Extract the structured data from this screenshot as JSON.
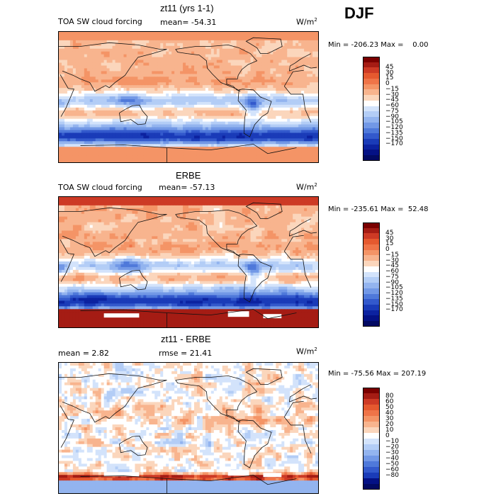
{
  "season": "DJF",
  "colors": {
    "scale1": [
      "#7a0000",
      "#a51c14",
      "#cd3a25",
      "#e5592f",
      "#ef7448",
      "#f49466",
      "#f8b48e",
      "#fbd6bc",
      "#ffffff",
      "#d3e3fb",
      "#b3cdf6",
      "#93b4ef",
      "#7298e6",
      "#4f79da",
      "#3359cc",
      "#1a3bb8",
      "#0c22a0",
      "#041185",
      "#020a63"
    ],
    "scale3": [
      "#7a0000",
      "#a51c14",
      "#cd3a25",
      "#e5592f",
      "#ef7448",
      "#f49466",
      "#f8b48e",
      "#fbd6bc",
      "#ffffff",
      "#d3e3fb",
      "#b3cdf6",
      "#93b4ef",
      "#7298e6",
      "#4f79da",
      "#3359cc",
      "#1a3bb8",
      "#041185",
      "#020a63"
    ]
  },
  "chart_data": [
    {
      "type": "heatmap",
      "title": "zt11 (yrs 1-1)",
      "subtitle": "TOA SW cloud forcing",
      "stat_label": "mean= -54.31",
      "units_base": "W/m",
      "units_exp": "2",
      "minmax": "Min = -206.23 Max =    0.00",
      "colorbar_levels": [
        "45",
        "30",
        "15",
        "0",
        "−15",
        "−30",
        "−45",
        "−60",
        "−75",
        "−90",
        "−105",
        "−120",
        "−135",
        "−150",
        "−170"
      ]
    },
    {
      "type": "heatmap",
      "title": "ERBE",
      "subtitle": "TOA SW cloud forcing",
      "stat_label": "mean= -57.13",
      "units_base": "W/m",
      "units_exp": "2",
      "minmax": "Min = -235.61 Max =  52.48",
      "colorbar_levels": [
        "45",
        "30",
        "15",
        "0",
        "−15",
        "−30",
        "−45",
        "−60",
        "−75",
        "−90",
        "−105",
        "−120",
        "−135",
        "−150",
        "−170"
      ]
    },
    {
      "type": "heatmap",
      "title": "zt11 - ERBE",
      "stat_label": "mean =    2.82",
      "rmse_label": "rmse =  21.41",
      "units_base": "W/m",
      "units_exp": "2",
      "minmax": "Min = -75.56 Max = 207.19",
      "colorbar_levels": [
        "80",
        "60",
        "50",
        "40",
        "30",
        "20",
        "10",
        "0",
        "−10",
        "−20",
        "−30",
        "−40",
        "−50",
        "−60",
        "−80"
      ]
    }
  ]
}
